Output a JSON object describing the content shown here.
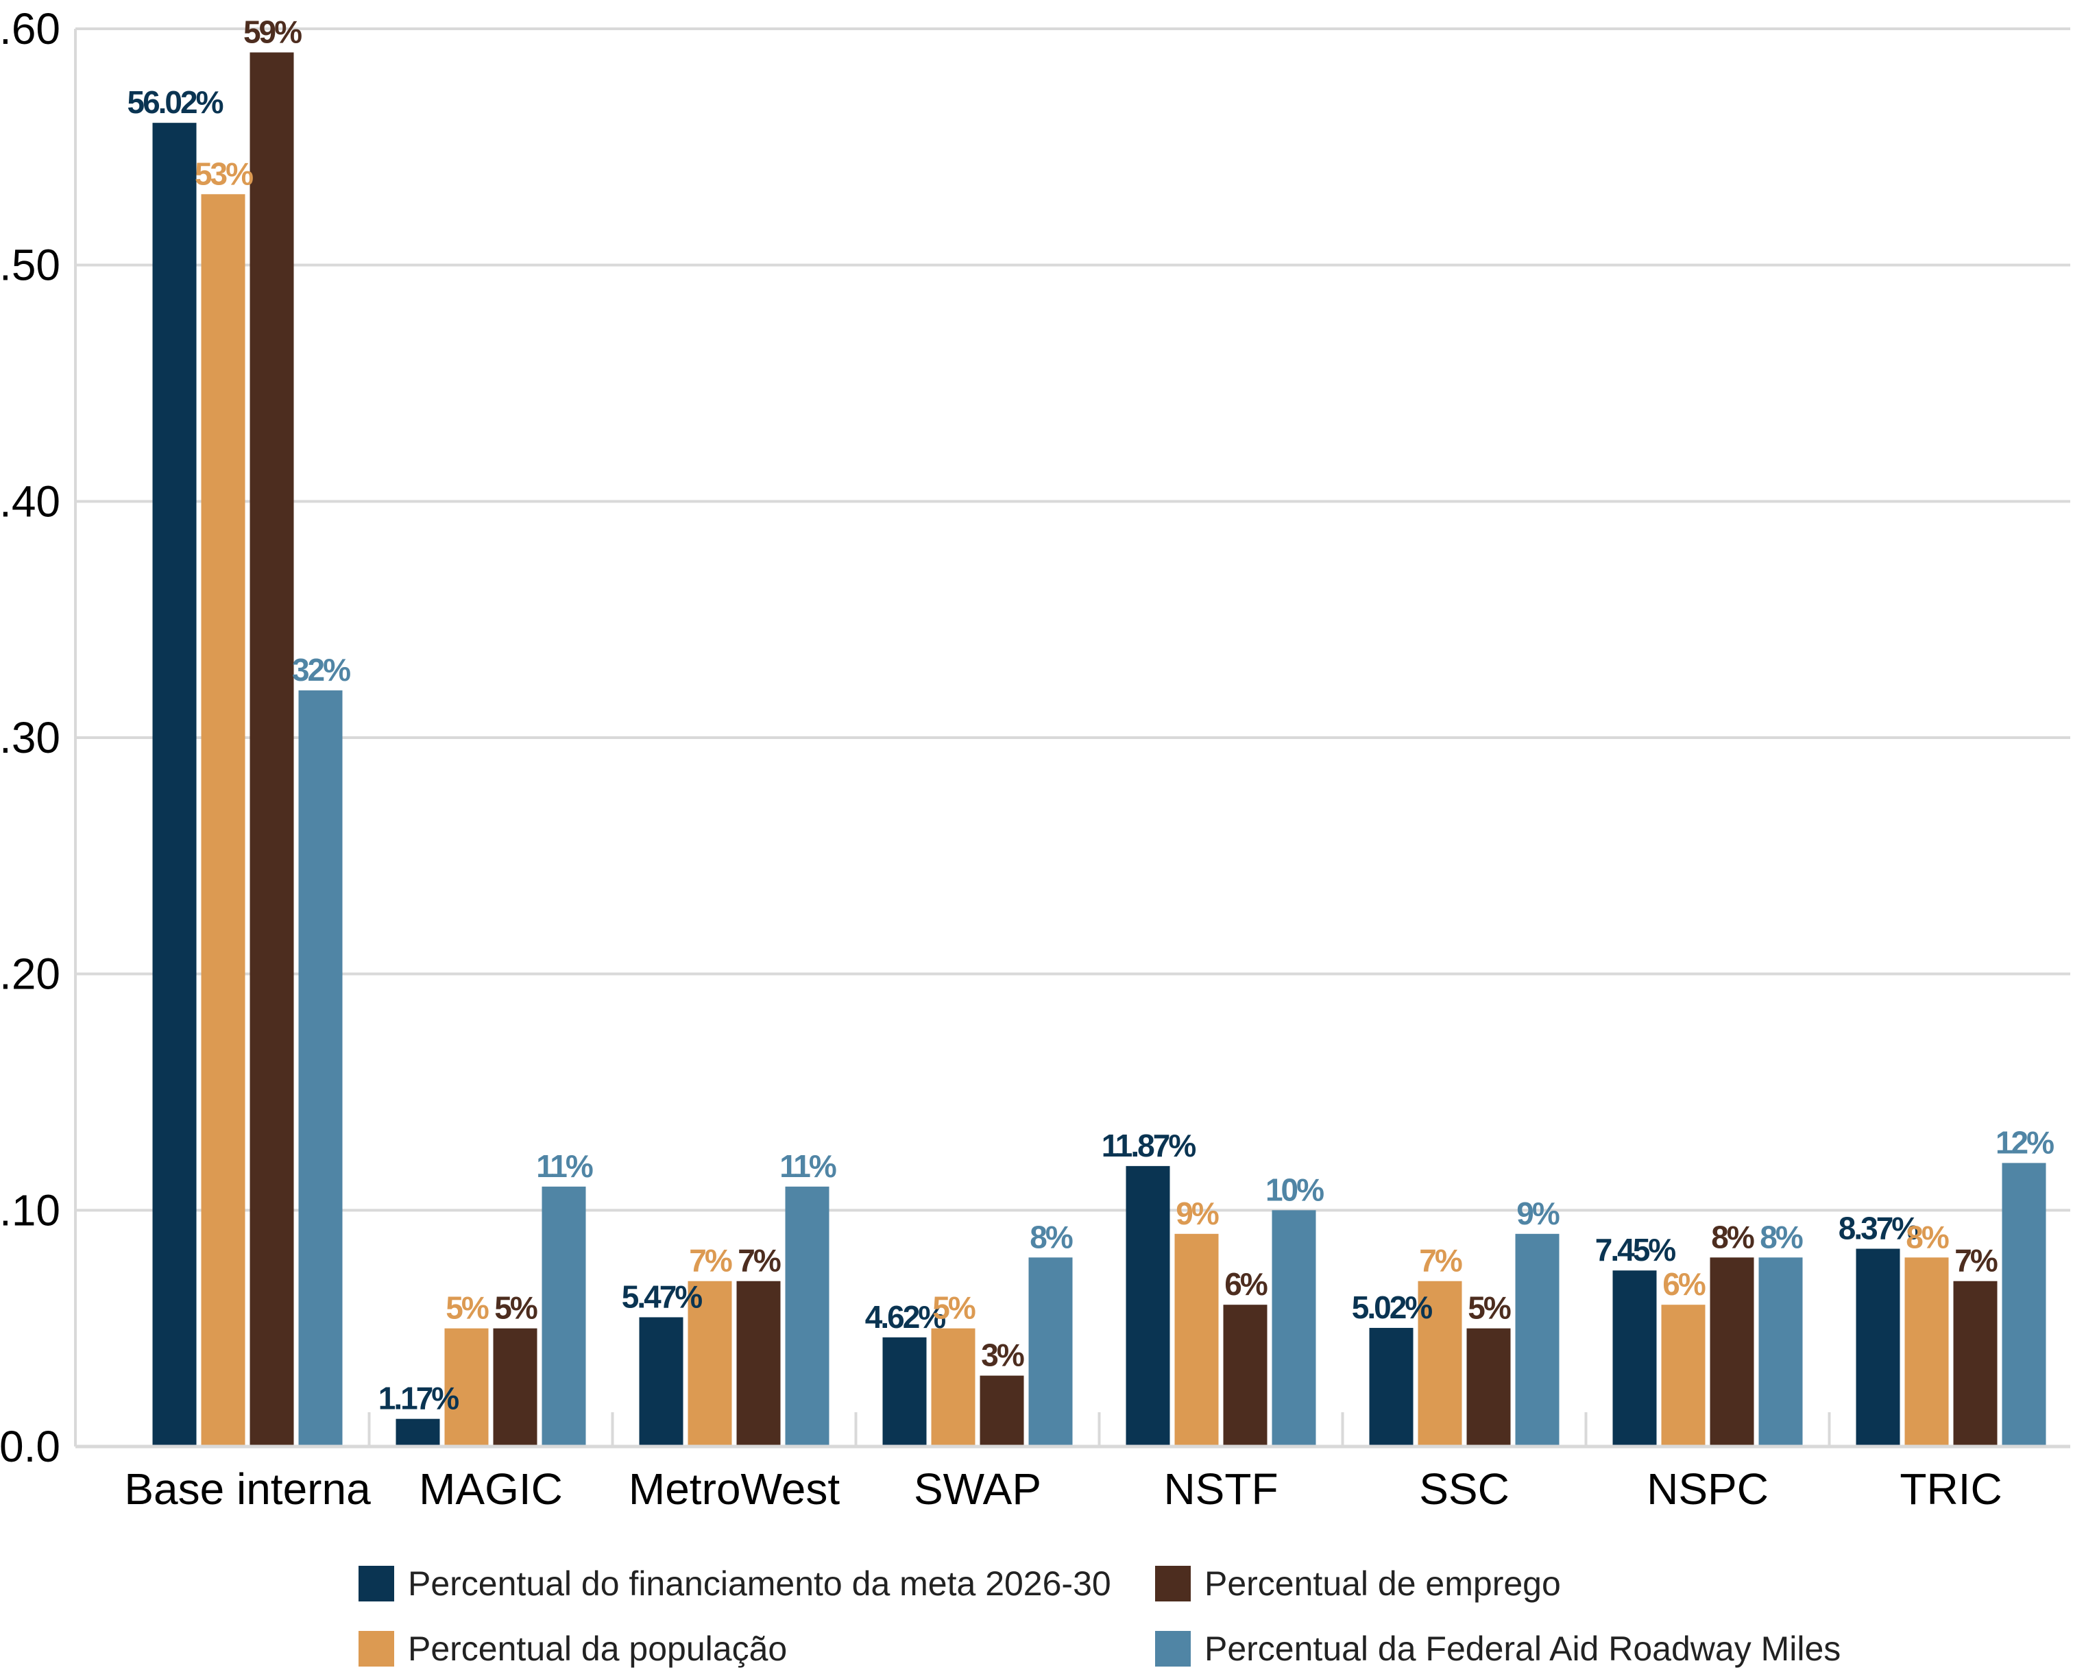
{
  "chart_data": {
    "type": "bar",
    "title": "",
    "xlabel": "",
    "ylabel": "",
    "ylim": [
      0,
      0.6
    ],
    "yticks": [
      0,
      0.1,
      0.2,
      0.3,
      0.4,
      0.5,
      0.6
    ],
    "ytick_labels": [
      "0.0",
      ".10",
      ".20",
      ".30",
      ".40",
      ".50",
      ".60"
    ],
    "grid": true,
    "legend_placement": "bottom",
    "categories": [
      "Base interna",
      "MAGIC",
      "MetroWest",
      "SWAP",
      "NSTF",
      "SSC",
      "NSPC",
      "TRIC"
    ],
    "series": [
      {
        "name": "Percentual do financiamento da meta 2026-30",
        "color": "#0a3452",
        "values": [
          0.5602,
          0.0117,
          0.0547,
          0.0462,
          0.1187,
          0.0502,
          0.0745,
          0.0837
        ],
        "labels": [
          "56.02%",
          "1.17%",
          "5.47%",
          "4.62%",
          "11.87%",
          "5.02%",
          "7.45%",
          "8.37%"
        ]
      },
      {
        "name": "Percentual da população",
        "color": "#dc9a52",
        "values": [
          0.53,
          0.05,
          0.07,
          0.05,
          0.09,
          0.07,
          0.06,
          0.08
        ],
        "labels": [
          "53%",
          "5%",
          "7%",
          "5%",
          "9%",
          "7%",
          "6%",
          "8%"
        ]
      },
      {
        "name": "Percentual de emprego",
        "color": "#4d2d1f",
        "values": [
          0.59,
          0.05,
          0.07,
          0.03,
          0.06,
          0.05,
          0.08,
          0.07
        ],
        "labels": [
          "59%",
          "5%",
          "7%",
          "3%",
          "6%",
          "5%",
          "8%",
          "7%"
        ]
      },
      {
        "name": "Percentual da Federal Aid Roadway Miles",
        "color": "#5085a5",
        "values": [
          0.32,
          0.11,
          0.11,
          0.08,
          0.1,
          0.09,
          0.08,
          0.12
        ],
        "labels": [
          "32%",
          "11%",
          "11%",
          "8%",
          "10%",
          "9%",
          "8%",
          "12%"
        ]
      }
    ]
  }
}
